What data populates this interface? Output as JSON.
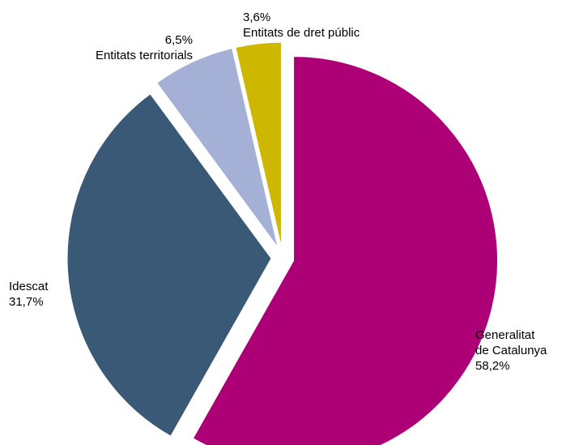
{
  "chart_data": {
    "type": "pie",
    "exploded": true,
    "start": "12 o'clock, clockwise",
    "slices": [
      {
        "label_lines": [
          "Generalitat",
          "de Catalunya"
        ],
        "value": 58.2,
        "value_label": "58,2%",
        "color": "#ad0077"
      },
      {
        "label_lines": [
          "Idescat"
        ],
        "value": 31.7,
        "value_label": "31,7%",
        "color": "#3a5977"
      },
      {
        "label_lines": [
          "Entitats territorials"
        ],
        "value": 6.5,
        "value_label": "6,5%",
        "color": "#a5b0d6"
      },
      {
        "label_lines": [
          "Entitats de dret públic"
        ],
        "value": 3.6,
        "value_label": "3,6%",
        "color": "#cdb700"
      }
    ]
  }
}
